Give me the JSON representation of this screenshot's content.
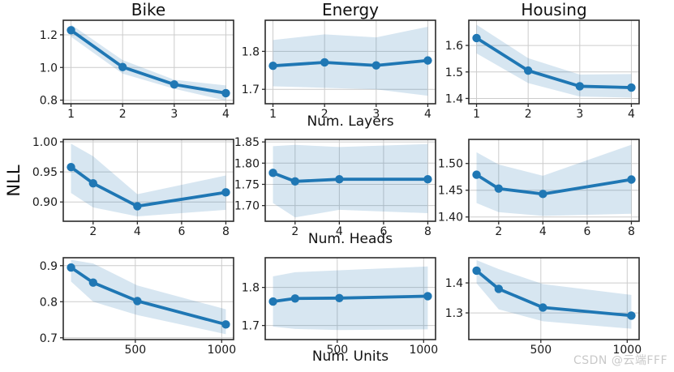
{
  "figure": {
    "ylabel": "NLL",
    "column_titles": [
      "Bike",
      "Energy",
      "Housing"
    ],
    "row_xlabels": [
      "Num. Layers",
      "Num. Heads",
      "Num. Units"
    ],
    "watermark": "CSDN @云端FFF",
    "colors": {
      "line": "#1f77b4",
      "marker": "#1f77b4",
      "band": "#1f77b4",
      "band_opacity": 0.18,
      "grid": "#cccccc",
      "spine": "#2b2b2b",
      "tick_text": "#1a1a1a",
      "watermark": "#c9c9c9"
    }
  },
  "chart_data": [
    {
      "id": "bike-num-layers",
      "type": "line",
      "dataset": "Bike",
      "x_param": "Num. Layers",
      "row": 0,
      "col": 0,
      "x": [
        1,
        2,
        3,
        4
      ],
      "xlim": [
        0.85,
        4.15
      ],
      "xticks": [
        1,
        2,
        3,
        4
      ],
      "xtick_labels": [
        "1",
        "2",
        "3",
        "4"
      ],
      "y": [
        1.228,
        1.003,
        0.896,
        0.843
      ],
      "band_low": [
        1.188,
        0.962,
        0.87,
        0.797
      ],
      "band_high": [
        1.263,
        1.045,
        0.925,
        0.89
      ],
      "ylim": [
        0.778,
        1.289
      ],
      "yticks": [
        0.8,
        1.0,
        1.2
      ],
      "ytick_labels": [
        "0.8",
        "1.0",
        "1.2"
      ],
      "grid": true
    },
    {
      "id": "energy-num-layers",
      "type": "line",
      "dataset": "Energy",
      "x_param": "Num. Layers",
      "row": 0,
      "col": 1,
      "x": [
        1,
        2,
        3,
        4
      ],
      "xlim": [
        0.85,
        4.15
      ],
      "xticks": [
        1,
        2,
        3,
        4
      ],
      "xtick_labels": [
        "1",
        "2",
        "3",
        "4"
      ],
      "y": [
        1.762,
        1.771,
        1.763,
        1.776
      ],
      "band_low": [
        1.708,
        1.704,
        1.7,
        1.683
      ],
      "band_high": [
        1.83,
        1.845,
        1.837,
        1.865
      ],
      "ylim": [
        1.662,
        1.882
      ],
      "yticks": [
        1.7,
        1.8
      ],
      "ytick_labels": [
        "1.7",
        "1.8"
      ],
      "grid": true
    },
    {
      "id": "housing-num-layers",
      "type": "line",
      "dataset": "Housing",
      "x_param": "Num. Layers",
      "row": 0,
      "col": 2,
      "x": [
        1,
        2,
        3,
        4
      ],
      "xlim": [
        0.85,
        4.15
      ],
      "xticks": [
        1,
        2,
        3,
        4
      ],
      "xtick_labels": [
        "1",
        "2",
        "3",
        "4"
      ],
      "y": [
        1.628,
        1.505,
        1.446,
        1.441
      ],
      "band_low": [
        1.57,
        1.458,
        1.407,
        1.403
      ],
      "band_high": [
        1.678,
        1.552,
        1.49,
        1.492
      ],
      "ylim": [
        1.38,
        1.695
      ],
      "yticks": [
        1.4,
        1.5,
        1.6
      ],
      "ytick_labels": [
        "1.4",
        "1.5",
        "1.6"
      ],
      "grid": true
    },
    {
      "id": "bike-num-heads",
      "type": "line",
      "dataset": "Bike",
      "x_param": "Num. Heads",
      "row": 1,
      "col": 0,
      "x": [
        1,
        2,
        4,
        8
      ],
      "xlim": [
        0.65,
        8.35
      ],
      "xticks": [
        2,
        4,
        6,
        8
      ],
      "xtick_labels": [
        "2",
        "4",
        "6",
        "8"
      ],
      "y": [
        0.958,
        0.931,
        0.893,
        0.916
      ],
      "band_low": [
        0.915,
        0.891,
        0.876,
        0.887
      ],
      "band_high": [
        0.997,
        0.976,
        0.913,
        0.944
      ],
      "ylim": [
        0.868,
        1.004
      ],
      "yticks": [
        0.9,
        0.95,
        1.0
      ],
      "ytick_labels": [
        "0.90",
        "0.95",
        "1.00"
      ],
      "grid": true
    },
    {
      "id": "energy-num-heads",
      "type": "line",
      "dataset": "Energy",
      "x_param": "Num. Heads",
      "row": 1,
      "col": 1,
      "x": [
        1,
        2,
        4,
        8
      ],
      "xlim": [
        0.65,
        8.35
      ],
      "xticks": [
        2,
        4,
        6,
        8
      ],
      "xtick_labels": [
        "2",
        "4",
        "6",
        "8"
      ],
      "y": [
        1.777,
        1.757,
        1.762,
        1.762
      ],
      "band_low": [
        1.706,
        1.672,
        1.69,
        1.682
      ],
      "band_high": [
        1.84,
        1.843,
        1.838,
        1.845
      ],
      "ylim": [
        1.663,
        1.856
      ],
      "yticks": [
        1.7,
        1.75,
        1.8,
        1.85
      ],
      "ytick_labels": [
        "1.70",
        "1.75",
        "1.80",
        "1.85"
      ],
      "grid": true
    },
    {
      "id": "housing-num-heads",
      "type": "line",
      "dataset": "Housing",
      "x_param": "Num. Heads",
      "row": 1,
      "col": 2,
      "x": [
        1,
        2,
        4,
        8
      ],
      "xlim": [
        0.65,
        8.35
      ],
      "xticks": [
        2,
        4,
        6,
        8
      ],
      "xtick_labels": [
        "2",
        "4",
        "6",
        "8"
      ],
      "y": [
        1.479,
        1.453,
        1.443,
        1.47
      ],
      "band_low": [
        1.426,
        1.409,
        1.402,
        1.406
      ],
      "band_high": [
        1.521,
        1.498,
        1.477,
        1.535
      ],
      "ylim": [
        1.392,
        1.545
      ],
      "yticks": [
        1.4,
        1.45,
        1.5
      ],
      "ytick_labels": [
        "1.40",
        "1.45",
        "1.50"
      ],
      "grid": true
    },
    {
      "id": "bike-num-units",
      "type": "line",
      "dataset": "Bike",
      "x_param": "Num. Units",
      "row": 2,
      "col": 0,
      "x": [
        128,
        256,
        512,
        1024
      ],
      "xlim": [
        83,
        1069
      ],
      "xticks": [
        500,
        1000
      ],
      "xtick_labels": [
        "500",
        "1000"
      ],
      "y": [
        0.895,
        0.853,
        0.802,
        0.737
      ],
      "band_low": [
        0.856,
        0.8,
        0.763,
        0.71
      ],
      "band_high": [
        0.916,
        0.906,
        0.845,
        0.779
      ],
      "ylim": [
        0.695,
        0.922
      ],
      "yticks": [
        0.7,
        0.8,
        0.9
      ],
      "ytick_labels": [
        "0.7",
        "0.8",
        "0.9"
      ],
      "grid": true
    },
    {
      "id": "energy-num-units",
      "type": "line",
      "dataset": "Energy",
      "x_param": "Num. Units",
      "row": 2,
      "col": 1,
      "x": [
        128,
        256,
        512,
        1024
      ],
      "xlim": [
        83,
        1069
      ],
      "xticks": [
        500,
        1000
      ],
      "xtick_labels": [
        "500",
        "1000"
      ],
      "y": [
        1.763,
        1.771,
        1.772,
        1.777
      ],
      "band_low": [
        1.697,
        1.691,
        1.688,
        1.69
      ],
      "band_high": [
        1.829,
        1.84,
        1.845,
        1.855
      ],
      "ylim": [
        1.663,
        1.878
      ],
      "yticks": [
        1.7,
        1.8
      ],
      "ytick_labels": [
        "1.7",
        "1.8"
      ],
      "grid": true
    },
    {
      "id": "housing-num-units",
      "type": "line",
      "dataset": "Housing",
      "x_param": "Num. Units",
      "row": 2,
      "col": 2,
      "x": [
        128,
        256,
        512,
        1024
      ],
      "xlim": [
        83,
        1069
      ],
      "xticks": [
        500,
        1000
      ],
      "xtick_labels": [
        "500",
        "1000"
      ],
      "y": [
        1.441,
        1.38,
        1.318,
        1.291
      ],
      "band_low": [
        1.399,
        1.312,
        1.272,
        1.247
      ],
      "band_high": [
        1.476,
        1.446,
        1.396,
        1.36
      ],
      "ylim": [
        1.211,
        1.484
      ],
      "yticks": [
        1.3,
        1.4
      ],
      "ytick_labels": [
        "1.3",
        "1.4"
      ],
      "grid": true
    }
  ]
}
